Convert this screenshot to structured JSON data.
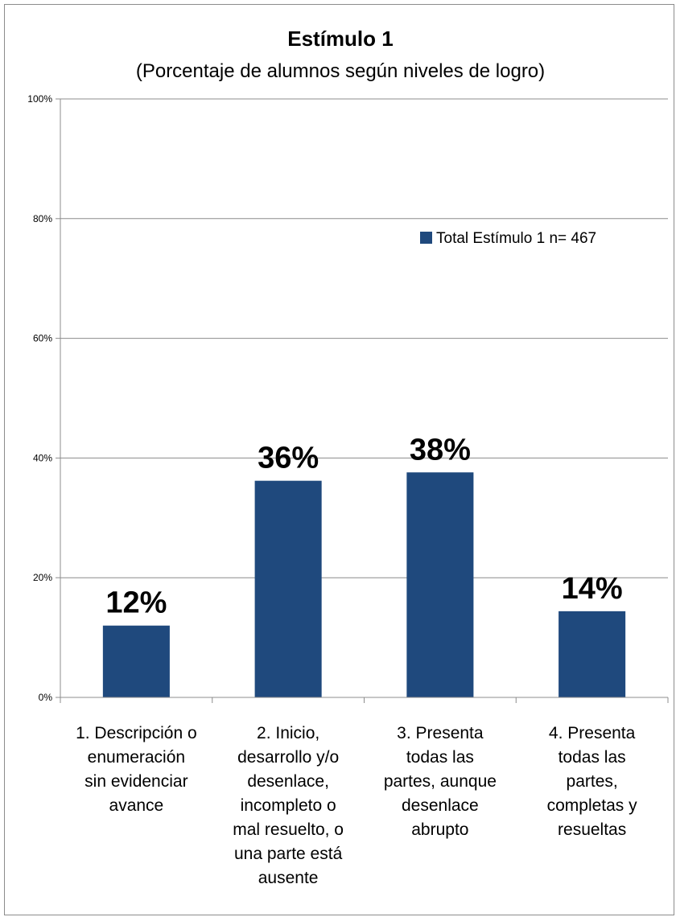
{
  "chart_data": {
    "type": "bar",
    "title": "Estímulo 1",
    "subtitle": "(Porcentaje de alumnos según niveles de logro)",
    "categories": [
      [
        "1. Descripción o",
        "enumeración",
        "sin evidenciar",
        "avance"
      ],
      [
        "2. Inicio,",
        "desarrollo y/o",
        "desenlace,",
        "incompleto o",
        "mal resuelto, o",
        "una parte está",
        "ausente"
      ],
      [
        "3. Presenta",
        "todas las",
        "partes, aunque",
        "desenlace",
        "abrupto"
      ],
      [
        "4. Presenta",
        "todas las",
        "partes,",
        "completas y",
        "resueltas"
      ]
    ],
    "series": [
      {
        "name": "Total Estímulo 1 n= 467",
        "values": [
          12,
          36,
          38,
          14
        ],
        "value_labels": [
          "12%",
          "36%",
          "38%",
          "14%"
        ],
        "values_plotted": [
          12.0,
          36.2,
          37.6,
          14.4
        ]
      }
    ],
    "ylim": [
      0,
      100
    ],
    "yticks": [
      0,
      20,
      40,
      60,
      80,
      100
    ],
    "ytick_labels": [
      "0%",
      "20%",
      "40%",
      "60%",
      "80%",
      "100%"
    ],
    "xlabel": "",
    "ylabel": "",
    "grid": true,
    "legend_position": "right",
    "colors": {
      "bar": "#1F497D",
      "grid": "#8c8c8c",
      "axis": "#8c8c8c"
    }
  }
}
